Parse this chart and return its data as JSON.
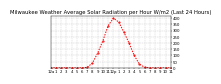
{
  "title": "Milwaukee Weather Average Solar Radiation per Hour W/m2 (Last 24 Hours)",
  "hours": [
    0,
    1,
    2,
    3,
    4,
    5,
    6,
    7,
    8,
    9,
    10,
    11,
    12,
    13,
    14,
    15,
    16,
    17,
    18,
    19,
    20,
    21,
    22,
    23
  ],
  "values": [
    0,
    0,
    0,
    0,
    0,
    0,
    0,
    5,
    40,
    120,
    220,
    340,
    400,
    370,
    290,
    200,
    100,
    30,
    5,
    0,
    0,
    0,
    0,
    0
  ],
  "line_color": "#ff0000",
  "bg_color": "#ffffff",
  "grid_color": "#bbbbbb",
  "ylim": [
    0,
    420
  ],
  "xlim": [
    0,
    23
  ],
  "ytick_values": [
    0,
    50,
    100,
    150,
    200,
    250,
    300,
    350,
    400
  ],
  "ytick_labels": [
    "0",
    "50",
    "100",
    "150",
    "200",
    "250",
    "300",
    "350",
    "400"
  ],
  "xtick_positions": [
    0,
    1,
    2,
    3,
    4,
    5,
    6,
    7,
    8,
    9,
    10,
    11,
    12,
    13,
    14,
    15,
    16,
    17,
    18,
    19,
    20,
    21,
    22,
    23
  ],
  "xtick_labels": [
    "12a",
    "1",
    "2",
    "3",
    "4",
    "5",
    "6",
    "7",
    "8",
    "9",
    "10",
    "11",
    "12p",
    "1",
    "2",
    "3",
    "4",
    "5",
    "6",
    "7",
    "8",
    "9",
    "10",
    "11"
  ],
  "title_fontsize": 3.8,
  "tick_fontsize": 2.8,
  "linewidth": 0.7,
  "markersize": 1.0
}
